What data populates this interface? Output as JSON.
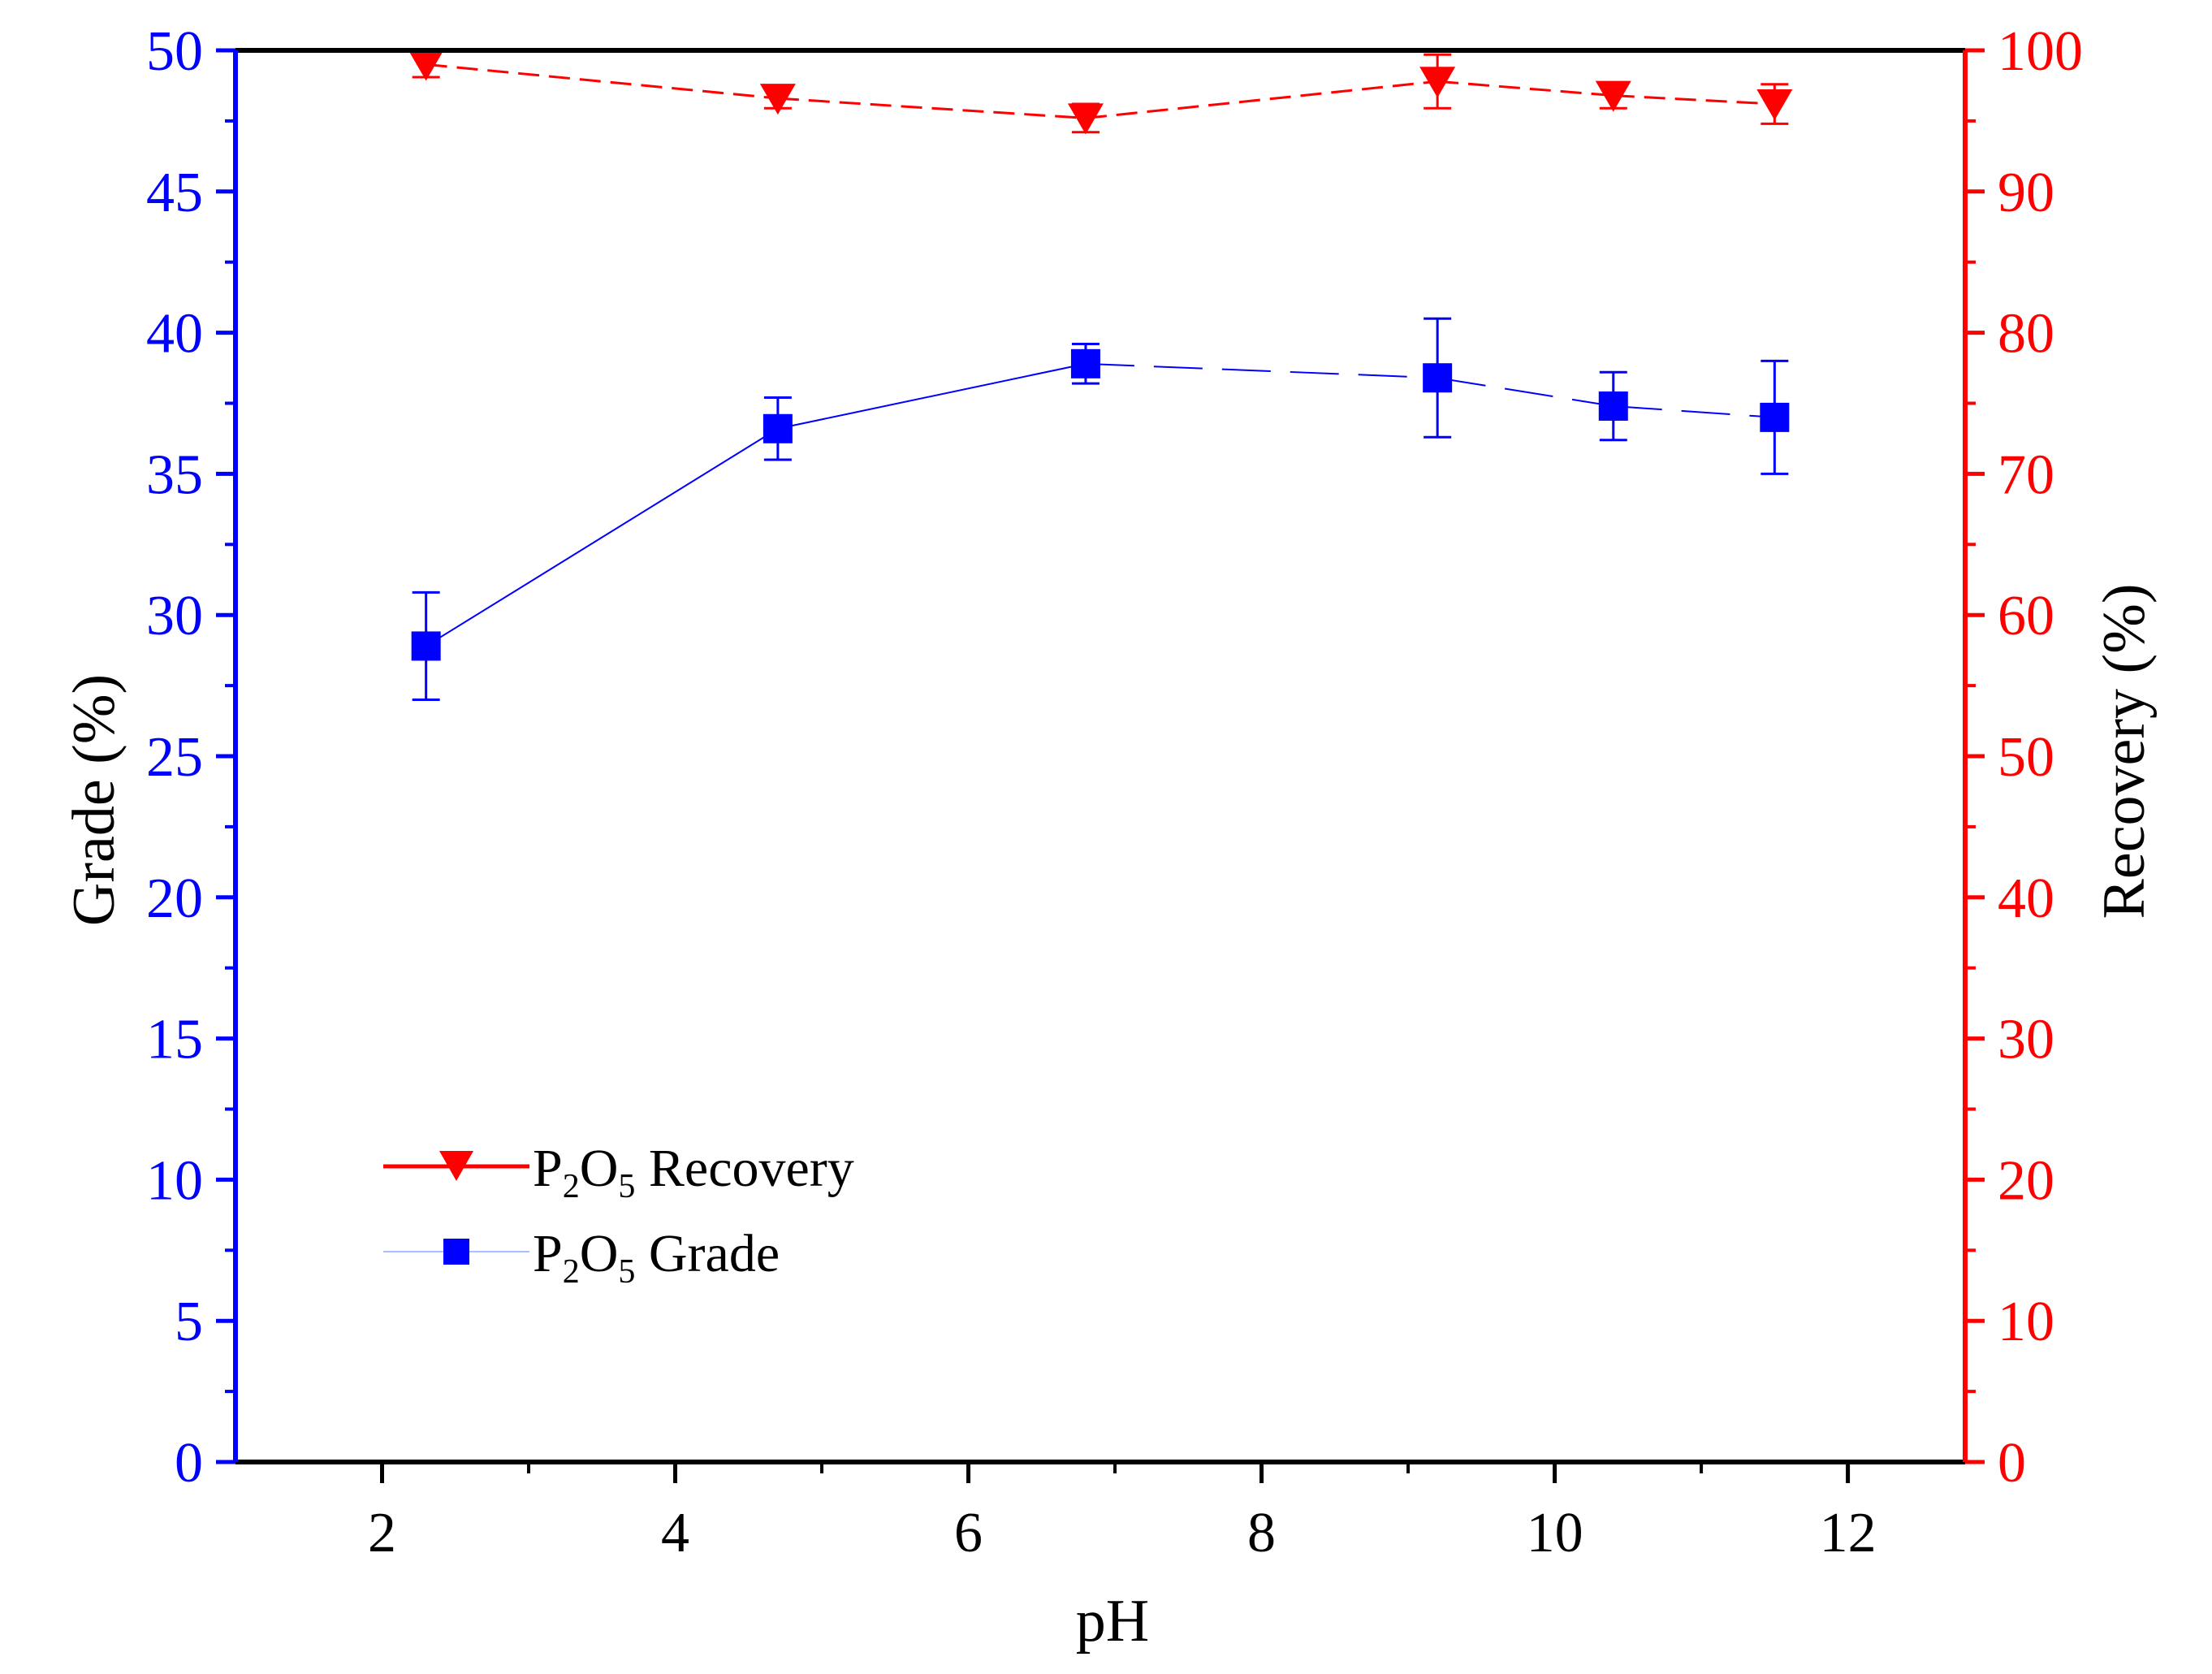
{
  "colors": {
    "left_axis": "#0000ff",
    "right_axis": "#ff0000",
    "frame": "#000000",
    "grade_series": "#0000ff",
    "recovery_series": "#ff0000"
  },
  "chart_data": {
    "type": "line",
    "xlabel": "pH",
    "ylabel_left": "Grade (%)",
    "ylabel_right": "Recovery (%)",
    "xlim": [
      1.0,
      12.8
    ],
    "ylim_left": [
      0,
      50
    ],
    "ylim_right": [
      0,
      100
    ],
    "x_ticks": [
      2,
      4,
      6,
      8,
      10,
      12
    ],
    "x_tick_labels": [
      "2",
      "4",
      "6",
      "8",
      "10",
      "12"
    ],
    "y_left_ticks": [
      0,
      5,
      10,
      15,
      20,
      25,
      30,
      35,
      40,
      45,
      50
    ],
    "y_left_tick_labels": [
      "0",
      "5",
      "10",
      "15",
      "20",
      "25",
      "30",
      "35",
      "40",
      "45",
      "50"
    ],
    "y_right_ticks": [
      0,
      10,
      20,
      30,
      40,
      50,
      60,
      70,
      80,
      90,
      100
    ],
    "y_right_tick_labels": [
      "0",
      "10",
      "20",
      "30",
      "40",
      "50",
      "60",
      "70",
      "80",
      "90",
      "100"
    ],
    "grid": false,
    "legend_position": "lower-left",
    "series": [
      {
        "name": "P2O5 Recovery",
        "legend_main": "P",
        "legend_sub1": "2",
        "legend_mid": "O",
        "legend_sub2": "5",
        "legend_tail": " Recovery",
        "axis": "right",
        "marker": "triangle-down",
        "line_style": "dashed",
        "x": [
          2.3,
          4.7,
          6.8,
          9.2,
          10.4,
          11.5
        ],
        "values": [
          99.0,
          96.6,
          95.2,
          97.8,
          96.8,
          96.2
        ],
        "error": [
          0.9,
          0.7,
          1.0,
          1.9,
          0.9,
          1.4
        ]
      },
      {
        "name": "P2O5 Grade",
        "legend_main": "P",
        "legend_sub1": "2",
        "legend_mid": "O",
        "legend_sub2": "5",
        "legend_tail": " Grade",
        "axis": "left",
        "marker": "square",
        "line_style": "solid-then-dashed",
        "x": [
          2.3,
          4.7,
          6.8,
          9.2,
          10.4,
          11.5
        ],
        "values": [
          28.9,
          36.6,
          38.9,
          38.4,
          37.4,
          37.0
        ],
        "error": [
          1.9,
          1.1,
          0.7,
          2.1,
          1.2,
          2.0
        ]
      }
    ]
  }
}
